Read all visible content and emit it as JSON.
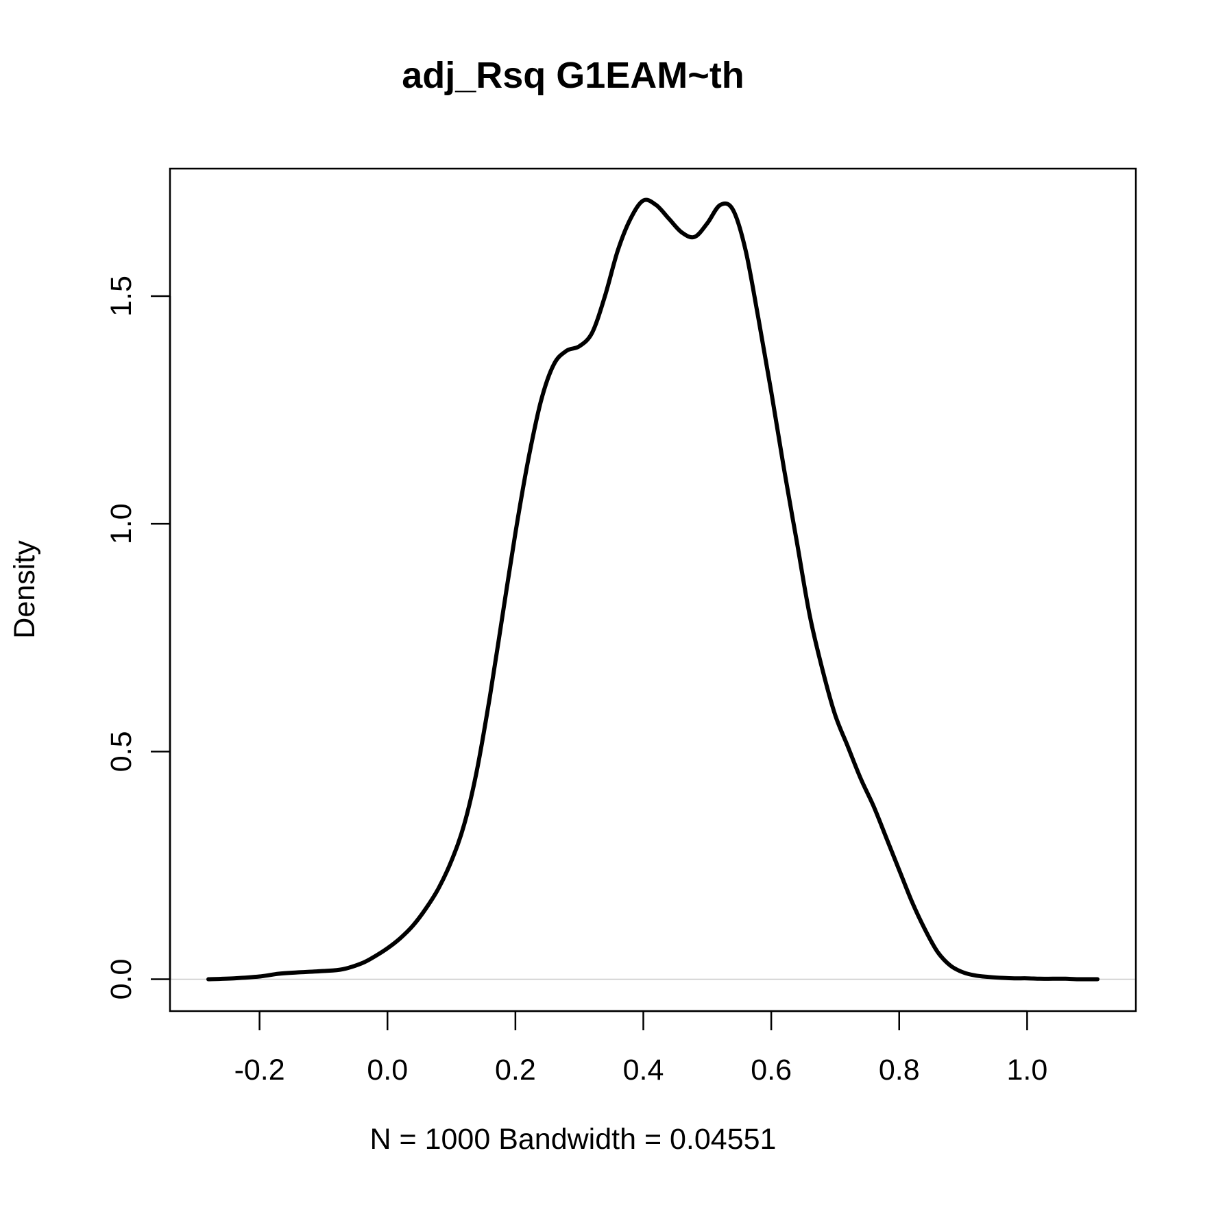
{
  "chart_data": {
    "type": "line",
    "title": "adj_Rsq G1EAM~th",
    "xlabel": "N = 1000   Bandwidth = 0.04551",
    "ylabel": "Density",
    "xlim": [
      -0.34,
      1.17
    ],
    "ylim": [
      -0.07,
      1.78
    ],
    "x_ticks": [
      -0.2,
      0.0,
      0.2,
      0.4,
      0.6,
      0.8,
      1.0
    ],
    "x_tick_labels": [
      "-0.2",
      "0.0",
      "0.2",
      "0.4",
      "0.6",
      "0.8",
      "1.0"
    ],
    "y_ticks": [
      0.0,
      0.5,
      1.0,
      1.5
    ],
    "y_tick_labels": [
      "0.0",
      "0.5",
      "1.0",
      "1.5"
    ],
    "zero_line": 0.0,
    "grid": false,
    "series": [
      {
        "x": [
          -0.28,
          -0.24,
          -0.2,
          -0.17,
          -0.14,
          -0.1,
          -0.07,
          -0.04,
          -0.02,
          0.0,
          0.02,
          0.04,
          0.06,
          0.08,
          0.1,
          0.12,
          0.14,
          0.16,
          0.18,
          0.2,
          0.22,
          0.24,
          0.26,
          0.28,
          0.3,
          0.32,
          0.34,
          0.36,
          0.38,
          0.4,
          0.42,
          0.44,
          0.46,
          0.48,
          0.5,
          0.52,
          0.54,
          0.56,
          0.58,
          0.6,
          0.62,
          0.64,
          0.66,
          0.68,
          0.7,
          0.72,
          0.74,
          0.76,
          0.78,
          0.8,
          0.82,
          0.84,
          0.86,
          0.88,
          0.9,
          0.92,
          0.94,
          0.96,
          0.98,
          1.0,
          1.02,
          1.04,
          1.06,
          1.08,
          1.11
        ],
        "y": [
          0.0,
          0.002,
          0.006,
          0.012,
          0.015,
          0.018,
          0.022,
          0.035,
          0.05,
          0.068,
          0.09,
          0.118,
          0.155,
          0.2,
          0.26,
          0.34,
          0.46,
          0.62,
          0.8,
          0.98,
          1.14,
          1.27,
          1.35,
          1.38,
          1.39,
          1.42,
          1.5,
          1.6,
          1.67,
          1.71,
          1.7,
          1.67,
          1.64,
          1.63,
          1.66,
          1.7,
          1.69,
          1.6,
          1.45,
          1.29,
          1.12,
          0.96,
          0.8,
          0.68,
          0.58,
          0.51,
          0.44,
          0.38,
          0.31,
          0.24,
          0.17,
          0.11,
          0.06,
          0.03,
          0.015,
          0.008,
          0.005,
          0.003,
          0.002,
          0.002,
          0.001,
          0.001,
          0.001,
          0.0,
          0.0
        ]
      }
    ]
  }
}
